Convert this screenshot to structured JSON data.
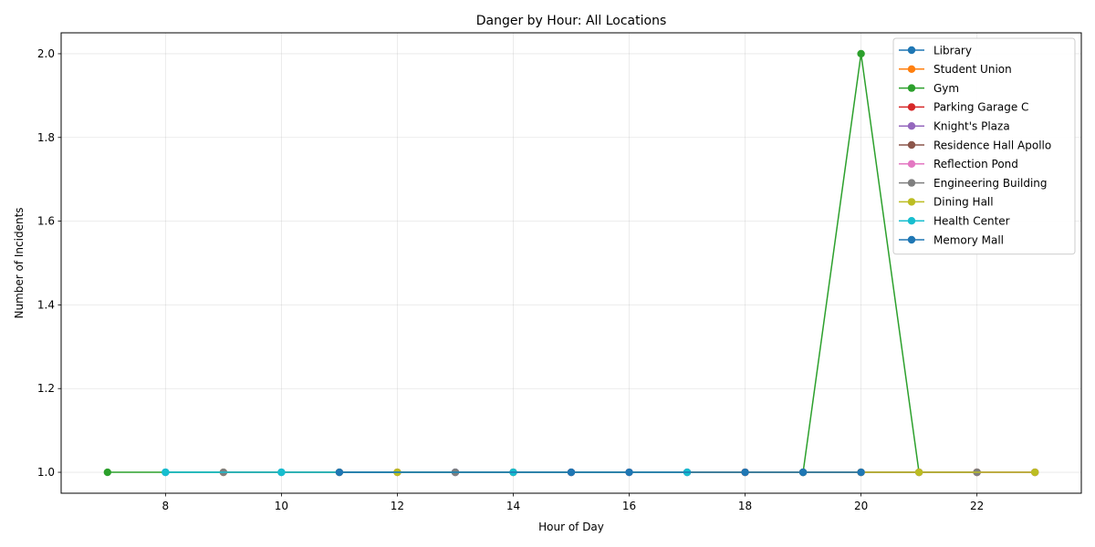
{
  "chart_data": {
    "type": "line",
    "title": "Danger by Hour: All Locations",
    "xlabel": "Hour of Day",
    "ylabel": "Number of Incidents",
    "xlim": [
      6.2,
      23.8
    ],
    "ylim": [
      0.95,
      2.05
    ],
    "xticks": [
      8,
      10,
      12,
      14,
      16,
      18,
      20,
      22
    ],
    "yticks": [
      1.0,
      1.2,
      1.4,
      1.6,
      1.8,
      2.0
    ],
    "grid": true,
    "legend_position": "top-right",
    "markers": "circle",
    "series": [
      {
        "name": "Library",
        "color": "#1f77b4",
        "x": [
          8,
          10,
          11,
          13,
          15,
          17,
          19
        ],
        "y": [
          1,
          1,
          1,
          1,
          1,
          1,
          1
        ]
      },
      {
        "name": "Student Union",
        "color": "#ff7f0e",
        "x": [
          9,
          11,
          14,
          16,
          18,
          20
        ],
        "y": [
          1,
          1,
          1,
          1,
          1,
          1
        ]
      },
      {
        "name": "Gym",
        "color": "#2ca02c",
        "x": [
          7,
          19,
          20,
          21
        ],
        "y": [
          1,
          1,
          2,
          1
        ]
      },
      {
        "name": "Parking Garage C",
        "color": "#d62728",
        "x": [
          12,
          15,
          18,
          20,
          22
        ],
        "y": [
          1,
          1,
          1,
          1,
          1
        ]
      },
      {
        "name": "Knight's Plaza",
        "color": "#9467bd",
        "x": [
          13,
          17,
          21,
          23
        ],
        "y": [
          1,
          1,
          1,
          1
        ]
      },
      {
        "name": "Residence Hall Apollo",
        "color": "#8c564b",
        "x": [
          14,
          19,
          22,
          23
        ],
        "y": [
          1,
          1,
          1,
          1
        ]
      },
      {
        "name": "Reflection Pond",
        "color": "#e377c2",
        "x": [
          16,
          20,
          21,
          23
        ],
        "y": [
          1,
          1,
          1,
          1
        ]
      },
      {
        "name": "Engineering Building",
        "color": "#7f7f7f",
        "x": [
          9,
          13,
          22
        ],
        "y": [
          1,
          1,
          1
        ]
      },
      {
        "name": "Dining Hall",
        "color": "#bcbd22",
        "x": [
          12,
          20,
          21,
          23
        ],
        "y": [
          1,
          1,
          1,
          1
        ]
      },
      {
        "name": "Health Center",
        "color": "#17becf",
        "x": [
          8,
          10,
          14,
          17
        ],
        "y": [
          1,
          1,
          1,
          1
        ]
      },
      {
        "name": "Memory Mall",
        "color": "#1f77b4",
        "x": [
          11,
          15,
          16,
          18,
          19,
          20
        ],
        "y": [
          1,
          1,
          1,
          1,
          1,
          1
        ]
      }
    ]
  }
}
